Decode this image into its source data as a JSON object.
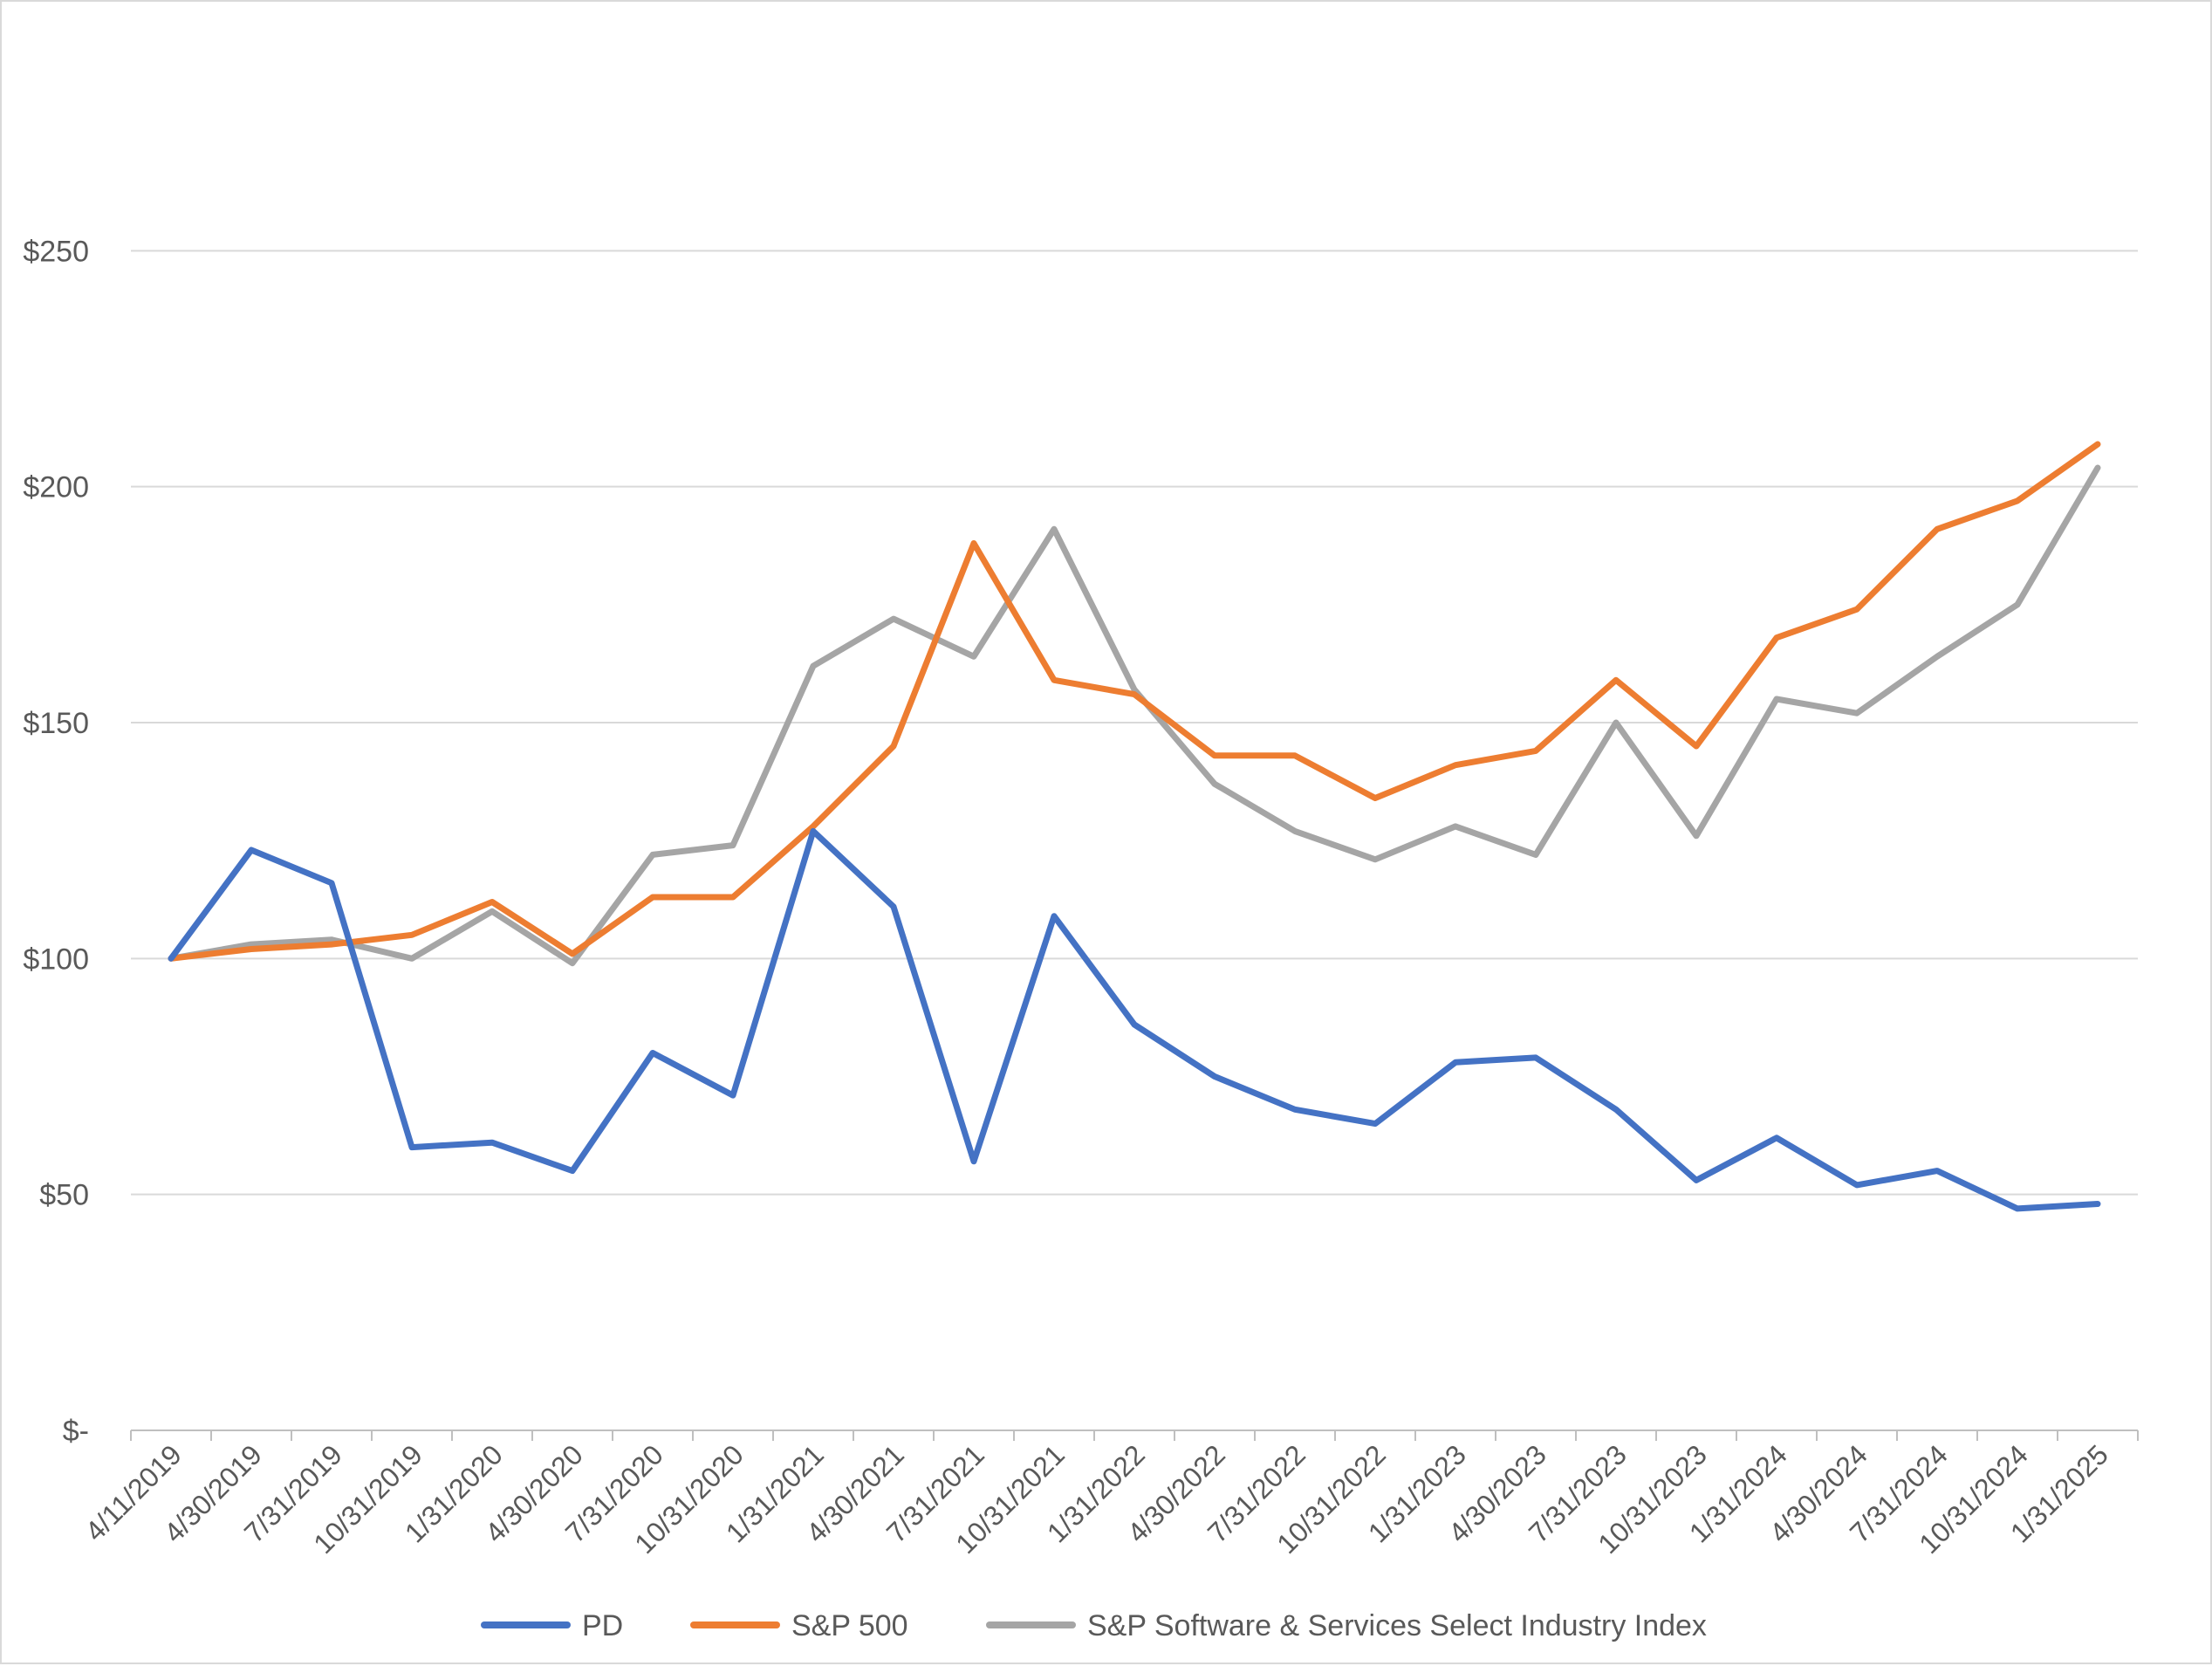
{
  "chart_data": {
    "type": "line",
    "title": "",
    "xlabel": "",
    "ylabel": "",
    "categories": [
      "4/11/2019",
      "4/30/2019",
      "7/31/2019",
      "10/31/2019",
      "1/31/2020",
      "4/30/2020",
      "7/31/2020",
      "10/31/2020",
      "1/31/2021",
      "4/30/2021",
      "7/31/2021",
      "10/31/2021",
      "1/31/2022",
      "4/30/2022",
      "7/31/2022",
      "10/31/2022",
      "1/31/2023",
      "4/30/2023",
      "7/31/2023",
      "10/31/2023",
      "1/31/2024",
      "4/30/2024",
      "7/31/2024",
      "10/31/2024",
      "1/31/2025"
    ],
    "ylim": [
      0,
      300
    ],
    "yticks": [
      0,
      50,
      100,
      150,
      200,
      250
    ],
    "ytick_labels": [
      "$-",
      "$50",
      "$100",
      "$150",
      "$200",
      "$250"
    ],
    "grid": true,
    "legend_position": "bottom",
    "series": [
      {
        "name": "PD",
        "color": "#4472c4",
        "values": [
          100,
          123,
          116,
          60,
          61,
          55,
          80,
          71,
          127,
          111,
          57,
          109,
          86,
          75,
          68,
          65,
          78,
          79,
          68,
          53,
          62,
          52,
          55,
          47,
          48
        ]
      },
      {
        "name": "S&P 500",
        "color": "#ed7d31",
        "values": [
          100,
          102,
          103,
          105,
          112,
          101,
          113,
          113,
          128,
          145,
          188,
          159,
          156,
          143,
          143,
          134,
          141,
          144,
          159,
          145,
          168,
          174,
          191,
          197,
          209
        ]
      },
      {
        "name": "S&P Software & Services Select Industry Index",
        "color": "#a5a5a5",
        "values": [
          100,
          103,
          104,
          100,
          110,
          99,
          122,
          124,
          162,
          172,
          164,
          191,
          157,
          137,
          127,
          121,
          128,
          122,
          150,
          126,
          155,
          152,
          164,
          175,
          204
        ]
      }
    ]
  }
}
